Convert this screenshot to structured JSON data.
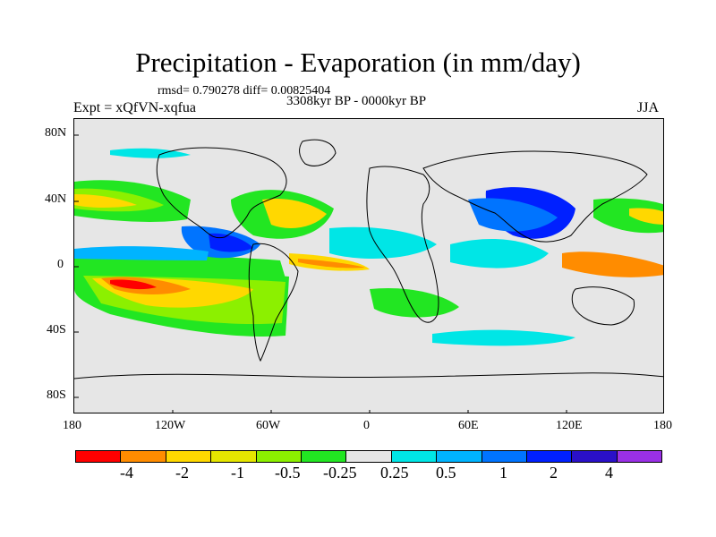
{
  "title": "Precipitation - Evaporation (in mm/day)",
  "stats": "rmsd= 0.790278 diff= 0.00825404",
  "period": "3308kyr BP - 0000kyr BP",
  "experiment": "Expt = xQfVN-xqfua",
  "season": "JJA",
  "map": {
    "lon_range": [
      -180,
      180
    ],
    "lat_range": [
      -90,
      90
    ],
    "lat_ticks": [
      "80N",
      "40N",
      "0",
      "40S",
      "80S"
    ],
    "lon_ticks": [
      "180",
      "120W",
      "60W",
      "0",
      "60E",
      "120E",
      "180"
    ]
  },
  "colorbar": {
    "colors": [
      "#ff0000",
      "#ff8c00",
      "#ffd800",
      "#e6e600",
      "#8cf000",
      "#22e622",
      "#e6e6e6",
      "#00e6e6",
      "#00b4ff",
      "#0074ff",
      "#0020ff",
      "#2a10c8",
      "#9a30e6"
    ],
    "labels": [
      "-4",
      "-2",
      "-1",
      "-0.5",
      "-0.25",
      "0.25",
      "0.5",
      "1",
      "2",
      "4"
    ]
  },
  "colors": {
    "background": "#e6e6e6",
    "land_outline": "#000000"
  }
}
